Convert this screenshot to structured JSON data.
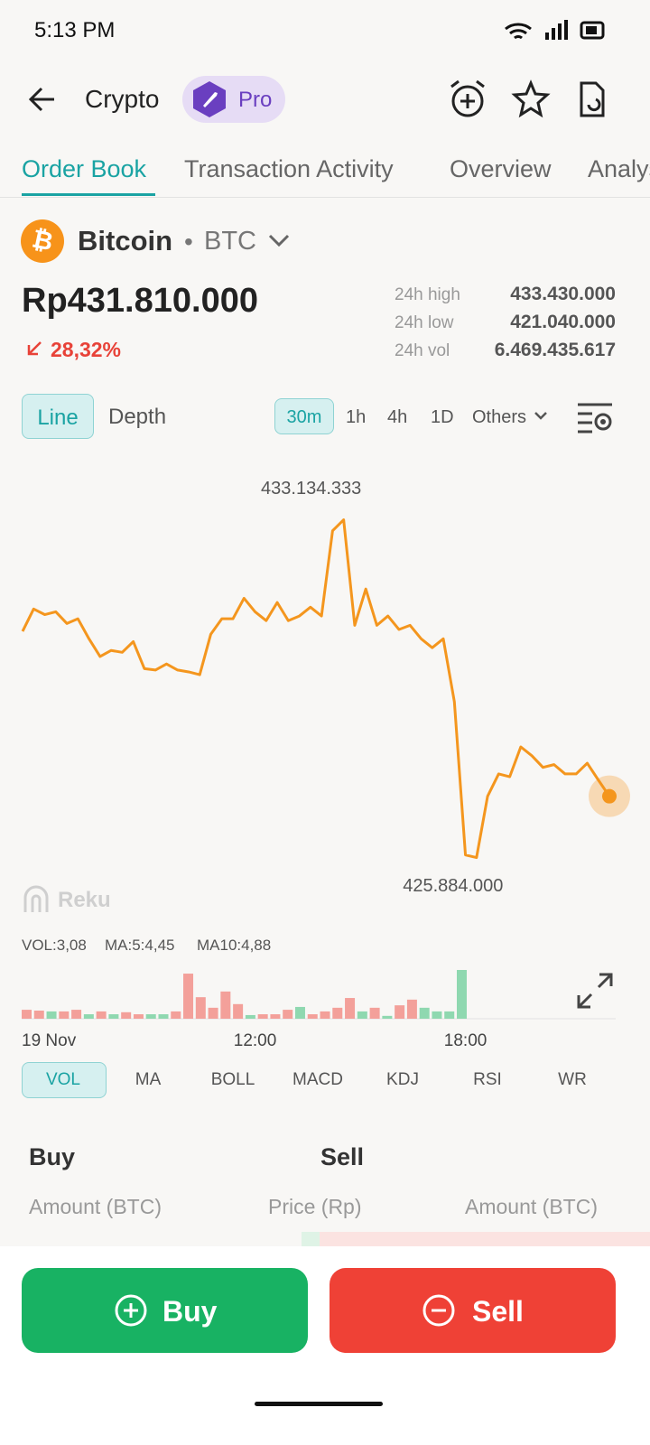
{
  "status": {
    "time": "5:13 PM"
  },
  "header": {
    "title": "Crypto",
    "badge": "Pro"
  },
  "tabs": [
    "Order Book",
    "Transaction Activity",
    "Overview",
    "Analysis"
  ],
  "coin": {
    "name": "Bitcoin",
    "symbol": "BTC",
    "price": "Rp431.810.000",
    "change": "28,32%"
  },
  "stats": [
    [
      "24h high",
      "433.430.000"
    ],
    [
      "24h low",
      "421.040.000"
    ],
    [
      "24h vol",
      "6.469.435.617"
    ]
  ],
  "chart_modes": [
    "Line",
    "Depth"
  ],
  "intervals": [
    "30m",
    "1h",
    "4h",
    "1D",
    "Others"
  ],
  "watermark": "Reku",
  "chart_data": {
    "type": "line",
    "color": "#f4961e",
    "values": [
      430740000,
      431220000,
      431100000,
      431160000,
      430910000,
      431010000,
      430580000,
      430200000,
      430330000,
      430290000,
      430520000,
      429940000,
      429910000,
      430040000,
      429910000,
      429870000,
      429810000,
      430680000,
      431010000,
      431010000,
      431450000,
      431160000,
      430970000,
      431360000,
      430970000,
      431070000,
      431260000,
      431070000,
      432900000,
      433134333,
      430870000,
      431650000,
      430870000,
      431070000,
      430780000,
      430870000,
      430580000,
      430390000,
      430580000,
      429230000,
      425940000,
      425884000,
      427200000,
      427680000,
      427620000,
      428260000,
      428070000,
      427820000,
      427880000,
      427680000,
      427680000,
      427910000,
      427550000,
      427200000
    ],
    "ylim": [
      425100000,
      434600000
    ],
    "high_label": "433.134.333",
    "low_label": "425.884.000",
    "xticks": [
      {
        "value": 0,
        "label": "19 Nov"
      },
      {
        "value": 21,
        "label": "12:00"
      },
      {
        "value": 40,
        "label": "18:00"
      }
    ]
  },
  "volume": {
    "type": "bar",
    "indicators": [
      "VOL:3,08",
      "MA:5:4,45",
      "MA10:4,88"
    ],
    "ylim": [
      0,
      12
    ],
    "values": [
      2.2,
      2.0,
      1.8,
      1.8,
      2.2,
      1.1,
      1.8,
      1.1,
      1.6,
      1.1,
      1.1,
      1.1,
      1.8,
      11.1,
      5.3,
      2.7,
      6.7,
      3.6,
      0.9,
      1.1,
      1.1,
      2.2,
      2.9,
      1.1,
      1.8,
      2.7,
      5.1,
      1.8,
      2.7,
      0.7,
      3.3,
      4.7,
      2.7,
      1.8,
      1.8,
      12.0
    ],
    "colors": [
      "#f3a09a",
      "#f3a09a",
      "#8fd8b0",
      "#f3a09a",
      "#f3a09a",
      "#8fd8b0",
      "#f3a09a",
      "#8fd8b0",
      "#f3a09a",
      "#f3a09a",
      "#8fd8b0",
      "#8fd8b0",
      "#f3a09a",
      "#f3a09a",
      "#f3a09a",
      "#f3a09a",
      "#f3a09a",
      "#f3a09a",
      "#8fd8b0",
      "#f3a09a",
      "#f3a09a",
      "#f3a09a",
      "#8fd8b0",
      "#f3a09a",
      "#f3a09a",
      "#f3a09a",
      "#f3a09a",
      "#8fd8b0",
      "#f3a09a",
      "#8fd8b0",
      "#f3a09a",
      "#f3a09a",
      "#8fd8b0",
      "#8fd8b0",
      "#8fd8b0",
      "#8fd8b0"
    ]
  },
  "indicator_tabs": [
    "VOL",
    "MA",
    "BOLL",
    "MACD",
    "KDJ",
    "RSI",
    "WR"
  ],
  "order_book": {
    "buy": "Buy",
    "sell": "Sell",
    "columns": [
      "Amount (BTC)",
      "Price (Rp)",
      "Amount (BTC)"
    ]
  },
  "actions": {
    "buy": "Buy",
    "sell": "Sell"
  }
}
